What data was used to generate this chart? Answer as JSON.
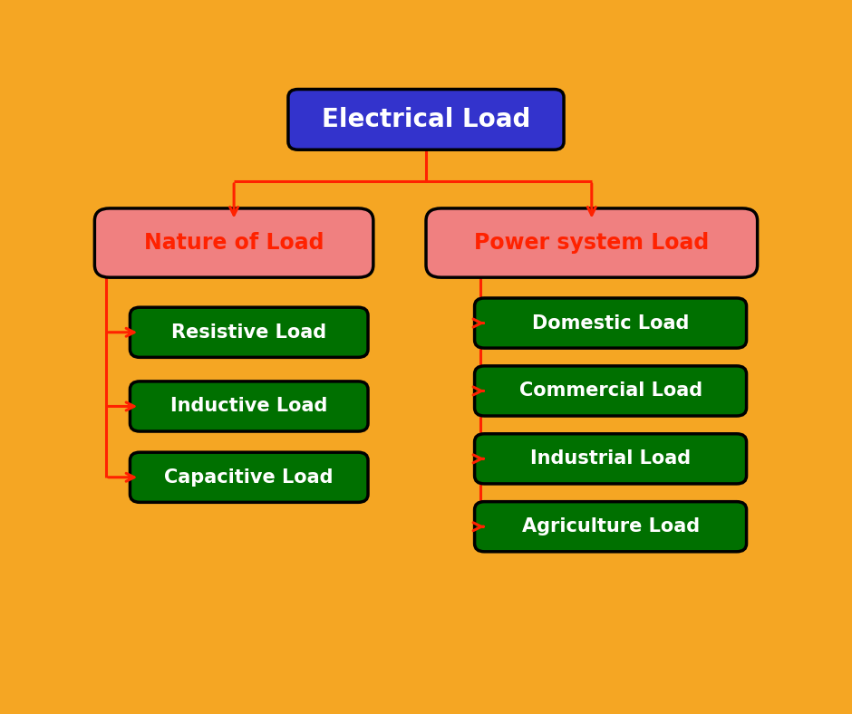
{
  "background_outer": "#F5A623",
  "background_inner": "#FFFFFF",
  "title": "Electrical Load",
  "title_box_color": "#3333CC",
  "title_text_color": "#FFFFFF",
  "level2_box_color": "#F08080",
  "level2_text_color": "#FF2200",
  "level2_border_color": "#000000",
  "level3_box_color": "#007000",
  "level3_text_color": "#FFFFFF",
  "level3_border_color": "#000000",
  "arrow_color": "#FF2200",
  "left_parent": "Nature of Load",
  "right_parent": "Power system Load",
  "left_children": [
    "Resistive Load",
    "Inductive Load",
    "Capacitive Load"
  ],
  "right_children": [
    "Domestic Load",
    "Commercial Load",
    "Industrial Load",
    "Agriculture Load"
  ],
  "title_fontsize": 20,
  "level2_fontsize": 17,
  "level3_fontsize": 15
}
